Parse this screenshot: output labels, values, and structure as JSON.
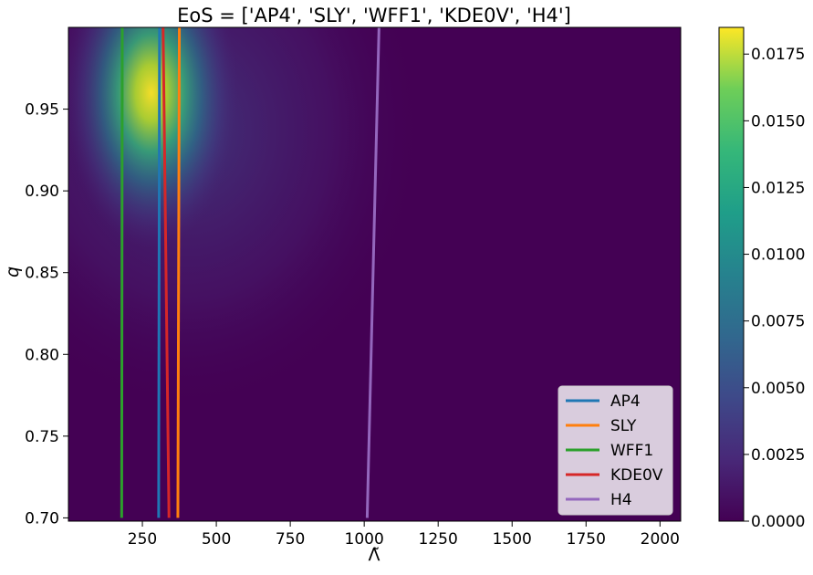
{
  "chart_data": {
    "type": "heatmap",
    "title": "EoS = ['AP4', 'SLY', 'WFF1', 'KDE0V', 'H4']",
    "xlabel": "Λ̃",
    "ylabel": "q",
    "xlim": [
      0,
      2070
    ],
    "ylim": [
      0.698,
      1.0
    ],
    "x_ticks": [
      250,
      500,
      750,
      1000,
      1250,
      1500,
      1750,
      2000
    ],
    "x_tick_labels": [
      "250",
      "500",
      "750",
      "1000",
      "1250",
      "1500",
      "1750",
      "2000"
    ],
    "y_ticks": [
      0.7,
      0.75,
      0.8,
      0.85,
      0.9,
      0.95
    ],
    "y_tick_labels": [
      "0.70",
      "0.75",
      "0.80",
      "0.85",
      "0.90",
      "0.95"
    ],
    "colorbar": {
      "colormap": "viridis",
      "range": [
        0.0,
        0.0185
      ],
      "ticks": [
        0.0,
        0.0025,
        0.005,
        0.0075,
        0.01,
        0.0125,
        0.015,
        0.0175
      ],
      "tick_labels": [
        "0.0000",
        "0.0025",
        "0.0050",
        "0.0075",
        "0.0100",
        "0.0125",
        "0.0150",
        "0.0175"
      ]
    },
    "density_peak": {
      "x": 280,
      "y": 0.96
    },
    "legend_position": "lower-right",
    "series": [
      {
        "name": "AP4",
        "color": "#1f77b4",
        "x": [
          305,
          308
        ],
        "y": [
          0.7,
          1.0
        ]
      },
      {
        "name": "SLY",
        "color": "#ff7f0e",
        "x": [
          370,
          375
        ],
        "y": [
          0.7,
          1.0
        ]
      },
      {
        "name": "WFF1",
        "color": "#2ca02c",
        "x": [
          180,
          182
        ],
        "y": [
          0.7,
          1.0
        ]
      },
      {
        "name": "KDE0V",
        "color": "#d62728",
        "x": [
          340,
          320
        ],
        "y": [
          0.7,
          1.0
        ]
      },
      {
        "name": "H4",
        "color": "#9467bd",
        "x": [
          1010,
          1050
        ],
        "y": [
          0.7,
          1.0
        ]
      }
    ]
  }
}
